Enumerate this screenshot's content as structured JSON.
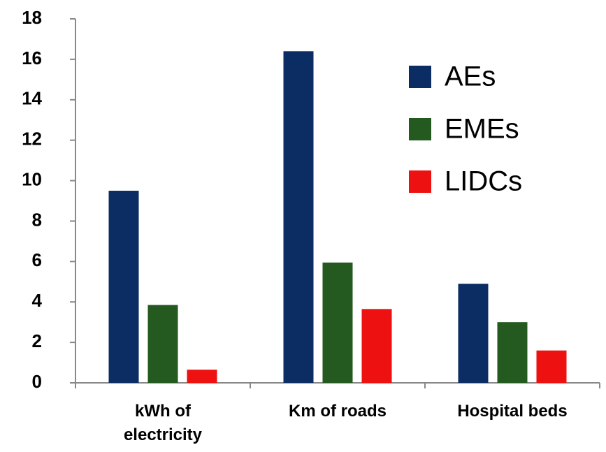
{
  "chart_data": {
    "type": "bar",
    "categories": [
      "kWh of electricity",
      "Km of roads",
      "Hospital beds"
    ],
    "series": [
      {
        "name": "AEs",
        "color": "#0b2d63",
        "values": [
          9.5,
          16.4,
          4.9
        ]
      },
      {
        "name": "EMEs",
        "color": "#245a1f",
        "values": [
          3.85,
          5.95,
          3.0
        ]
      },
      {
        "name": "LIDCs",
        "color": "#ee1111",
        "values": [
          0.65,
          3.65,
          1.6
        ]
      }
    ],
    "ylim": [
      0,
      18
    ],
    "yticks": [
      0,
      2,
      4,
      6,
      8,
      10,
      12,
      14,
      16,
      18
    ],
    "grid": false,
    "legend": "upper right"
  }
}
